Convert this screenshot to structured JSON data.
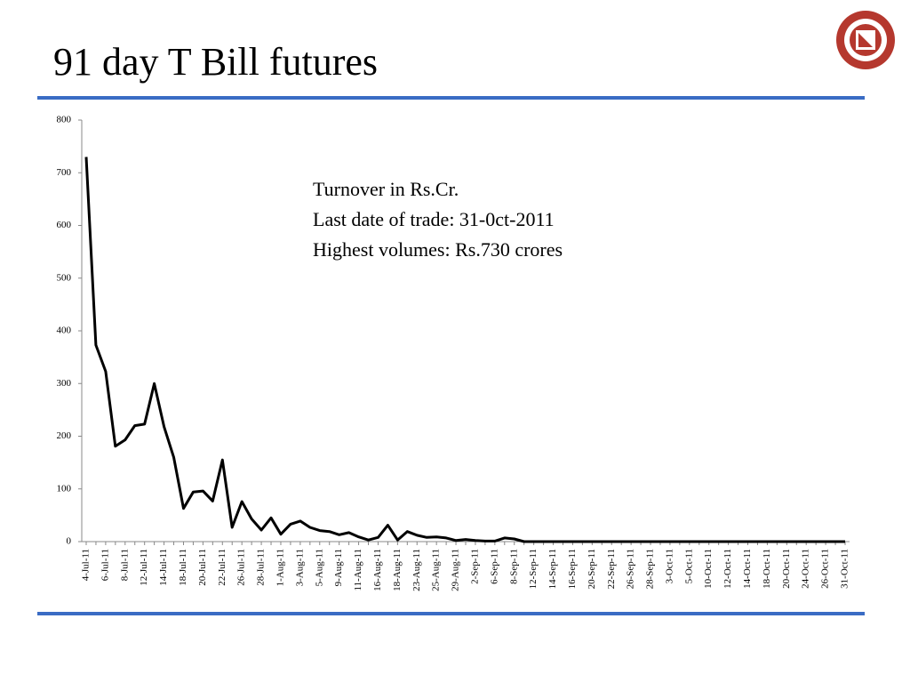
{
  "chart_data": {
    "type": "line",
    "title": "91 day T Bill futures",
    "annotations": [
      "Turnover in Rs.Cr.",
      "Last date of trade: 31-0ct-2011",
      "Highest volumes: Rs.730 crores"
    ],
    "categories": [
      "4-Jul-11",
      null,
      "6-Jul-11",
      null,
      "8-Jul-11",
      null,
      "12-Jul-11",
      null,
      "14-Jul-11",
      null,
      "18-Jul-11",
      null,
      "20-Jul-11",
      null,
      "22-Jul-11",
      null,
      "26-Jul-11",
      null,
      "28-Jul-11",
      null,
      "1-Aug-11",
      null,
      "3-Aug-11",
      null,
      "5-Aug-11",
      null,
      "9-Aug-11",
      null,
      "11-Aug-11",
      null,
      "16-Aug-11",
      null,
      "18-Aug-11",
      null,
      "23-Aug-11",
      null,
      "25-Aug-11",
      null,
      "29-Aug-11",
      null,
      "2-Sep-11",
      null,
      "6-Sep-11",
      null,
      "8-Sep-11",
      null,
      "12-Sep-11",
      null,
      "14-Sep-11",
      null,
      "16-Sep-11",
      null,
      "20-Sep-11",
      null,
      "22-Sep-11",
      null,
      "26-Sep-11",
      null,
      "28-Sep-11",
      null,
      "3-Oct-11",
      null,
      "5-Oct-11",
      null,
      "10-Oct-11",
      null,
      "12-Oct-11",
      null,
      "14-Oct-11",
      null,
      "18-Oct-11",
      null,
      "20-Oct-11",
      null,
      "24-Oct-11",
      null,
      "26-Oct-11",
      null,
      "31-Oct-11"
    ],
    "values": [
      730,
      373,
      323,
      181,
      193,
      220,
      223,
      300,
      218,
      160,
      63,
      94,
      96,
      77,
      155,
      27,
      76,
      43,
      22,
      45,
      14,
      33,
      39,
      27,
      21,
      19,
      13,
      17,
      9,
      3,
      8,
      31,
      3,
      19,
      12,
      8,
      9,
      7,
      2,
      4,
      2,
      1,
      1,
      7,
      5,
      0,
      0,
      0,
      0,
      0,
      0,
      0,
      0,
      0,
      0,
      0,
      0,
      0,
      0,
      0,
      0,
      0,
      0,
      0,
      0,
      0,
      0,
      0,
      0,
      0,
      0,
      0,
      0,
      0,
      0,
      0,
      0,
      0,
      0
    ],
    "color": "#000000",
    "ylim": [
      0,
      800
    ],
    "yticks": [
      0,
      100,
      200,
      300,
      400,
      500,
      600,
      700,
      800
    ]
  }
}
